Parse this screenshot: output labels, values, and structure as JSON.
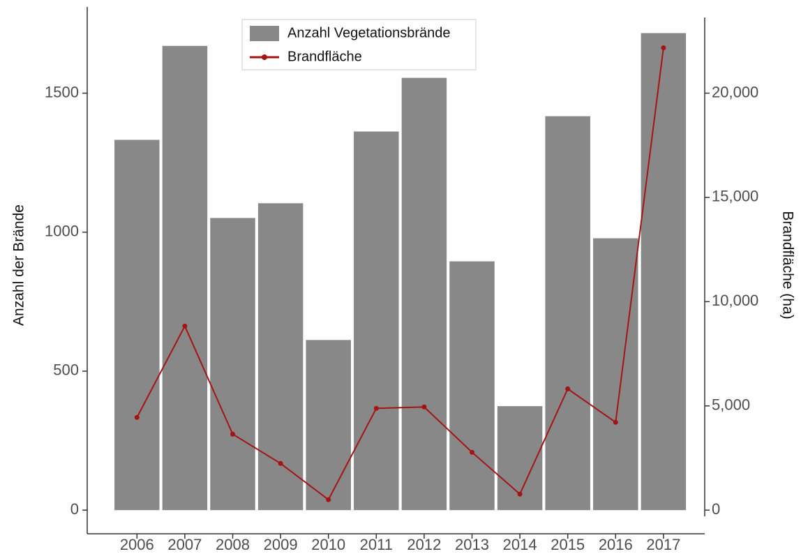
{
  "chart_data": {
    "type": "bar",
    "categories": [
      "2006",
      "2007",
      "2008",
      "2009",
      "2010",
      "2011",
      "2012",
      "2013",
      "2014",
      "2015",
      "2016",
      "2017"
    ],
    "series": [
      {
        "name": "Anzahl Vegetationsbrände",
        "type": "bar",
        "color": "#888888",
        "values": [
          1332,
          1670,
          1051,
          1104,
          612,
          1362,
          1555,
          895,
          374,
          1417,
          978,
          1716
        ]
      },
      {
        "name": "Brandfläche",
        "type": "line",
        "axis": "y2",
        "color": "#a31515",
        "values": [
          4448,
          8829,
          3645,
          2241,
          502,
          4883,
          4950,
          2776,
          769,
          5819,
          4214,
          22174
        ]
      }
    ],
    "y_label": "Anzahl der Brände",
    "y2_label": "Brandfläche (ha)",
    "ylim": [
      -85,
      1810
    ],
    "yticks": [
      0,
      500,
      1000,
      1500
    ],
    "y2lim": [
      -1133,
      24133
    ],
    "y2ticks": [
      0,
      {
        "value": 5000,
        "label": "5,000"
      },
      {
        "value": 10000,
        "label": "10,000"
      },
      {
        "value": 15000,
        "label": "15,000"
      },
      {
        "value": 20000,
        "label": "20,000"
      }
    ],
    "legend": "top"
  }
}
